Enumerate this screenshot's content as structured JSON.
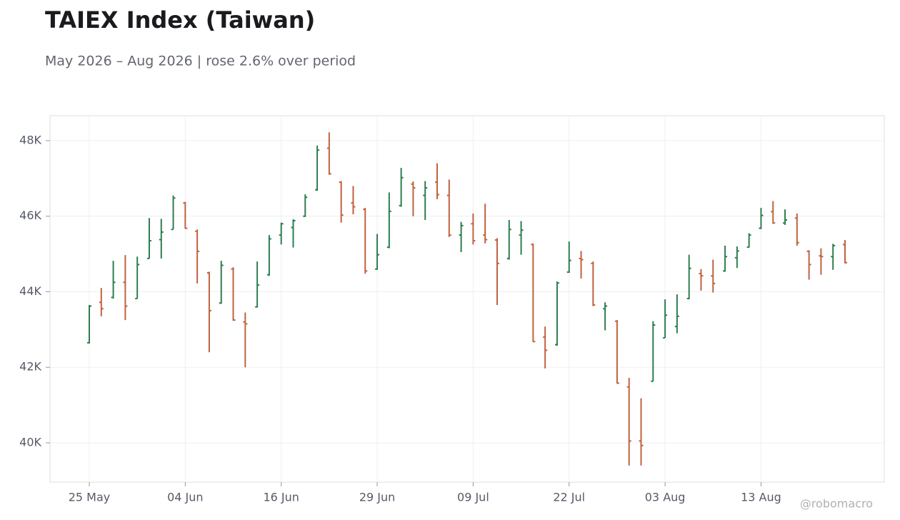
{
  "chart_data": {
    "type": "ohlc",
    "title": "TAIEX Index (Taiwan)",
    "subtitle": "May 2026 – Aug 2026 | rose 2.6% over period",
    "watermark": "@robomacro",
    "categories": [
      "25 May",
      null,
      null,
      null,
      null,
      null,
      null,
      null,
      "04 Jun",
      null,
      null,
      null,
      null,
      null,
      null,
      null,
      "16 Jun",
      null,
      null,
      null,
      null,
      null,
      null,
      null,
      "29 Jun",
      null,
      null,
      null,
      null,
      null,
      null,
      null,
      "09 Jul",
      null,
      null,
      null,
      null,
      null,
      null,
      null,
      "22 Jul",
      null,
      null,
      null,
      null,
      null,
      null,
      null,
      "03 Aug",
      null,
      null,
      null,
      null,
      null,
      null,
      null,
      "13 Aug",
      null,
      null,
      null,
      null,
      null,
      null,
      null
    ],
    "open": [
      42650,
      43720,
      43850,
      44250,
      43820,
      44880,
      45380,
      45650,
      46350,
      45600,
      44500,
      43700,
      44600,
      43200,
      43600,
      44450,
      45500,
      45700,
      46000,
      46700,
      47800,
      46900,
      46350,
      46180,
      44600,
      45180,
      46280,
      46850,
      46550,
      46900,
      46550,
      45500,
      45800,
      45500,
      45370,
      44880,
      45500,
      45250,
      42800,
      42600,
      44520,
      44880,
      44750,
      43550,
      43220,
      41480,
      40050,
      41630,
      42780,
      43080,
      43820,
      44480,
      44420,
      44550,
      44900,
      45180,
      45680,
      46120,
      45820,
      45950,
      45070,
      44950,
      44930,
      45250
    ],
    "high": [
      43650,
      44100,
      44820,
      44970,
      44930,
      45950,
      45930,
      46550,
      46380,
      45650,
      44530,
      44820,
      44650,
      43450,
      44800,
      45500,
      45830,
      45920,
      46580,
      47870,
      48220,
      46930,
      46800,
      46220,
      45530,
      46630,
      47280,
      46920,
      46930,
      47400,
      46970,
      45850,
      46070,
      46330,
      45420,
      45900,
      45870,
      45280,
      43080,
      44270,
      45330,
      45080,
      44800,
      43720,
      43250,
      41720,
      41180,
      43220,
      43800,
      43930,
      44980,
      44600,
      44850,
      45220,
      45200,
      45550,
      46220,
      46400,
      46180,
      46070,
      45100,
      45150,
      45270,
      45370
    ],
    "low": [
      42630,
      43350,
      43820,
      43250,
      43820,
      44880,
      44880,
      45650,
      45670,
      44220,
      42400,
      43680,
      43230,
      42000,
      43580,
      44420,
      45250,
      45170,
      45980,
      46670,
      47100,
      45830,
      46050,
      44480,
      44580,
      45150,
      46250,
      46000,
      45900,
      46450,
      45450,
      45050,
      45250,
      45280,
      43650,
      44850,
      44980,
      42670,
      41970,
      42570,
      44500,
      44350,
      43620,
      42980,
      41570,
      39400,
      39400,
      41630,
      42780,
      42900,
      43800,
      44030,
      43980,
      44530,
      44630,
      45170,
      45660,
      45800,
      45770,
      45220,
      44320,
      44450,
      44580,
      44750
    ],
    "close": [
      43620,
      43550,
      44250,
      43620,
      44720,
      45350,
      45580,
      46480,
      45680,
      45070,
      43500,
      44700,
      43250,
      43150,
      44180,
      45400,
      45800,
      45880,
      46500,
      47750,
      47120,
      46030,
      46250,
      44550,
      44980,
      46130,
      47020,
      46750,
      46750,
      46570,
      45500,
      45750,
      45350,
      45380,
      44750,
      45650,
      45630,
      42680,
      42450,
      44230,
      44830,
      44850,
      43650,
      43620,
      41580,
      40050,
      39930,
      43120,
      43380,
      43350,
      44620,
      44420,
      44220,
      44930,
      45080,
      45500,
      46020,
      45820,
      45900,
      45300,
      44720,
      44930,
      45220,
      44770
    ],
    "up_color": "#2e7d4f",
    "down_color": "#c0623e",
    "ylim": [
      38960,
      48660
    ],
    "yticks": [
      {
        "value": 40000,
        "label": "40K"
      },
      {
        "value": 42000,
        "label": "42K"
      },
      {
        "value": 44000,
        "label": "44K"
      },
      {
        "value": 46000,
        "label": "46K"
      },
      {
        "value": 48000,
        "label": "48K"
      }
    ],
    "grid": true
  }
}
